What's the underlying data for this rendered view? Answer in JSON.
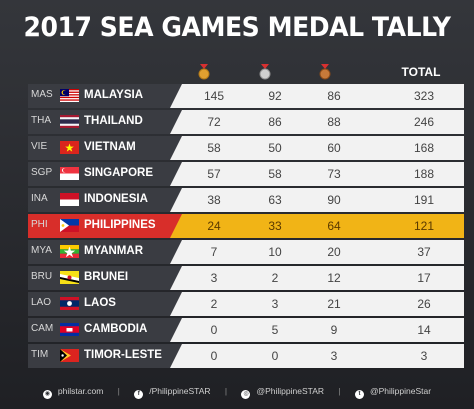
{
  "title": "2017 SEA GAMES MEDAL TALLY",
  "header": {
    "gold": "gold-medal",
    "silver": "silver-medal",
    "bronze": "bronze-medal",
    "total_label": "TOTAL"
  },
  "rows": [
    {
      "code": "MAS",
      "country": "MALAYSIA",
      "gold": "145",
      "silver": "92",
      "bronze": "86",
      "total": "323"
    },
    {
      "code": "THA",
      "country": "THAILAND",
      "gold": "72",
      "silver": "86",
      "bronze": "88",
      "total": "246"
    },
    {
      "code": "VIE",
      "country": "VIETNAM",
      "gold": "58",
      "silver": "50",
      "bronze": "60",
      "total": "168"
    },
    {
      "code": "SGP",
      "country": "SINGAPORE",
      "gold": "57",
      "silver": "58",
      "bronze": "73",
      "total": "188"
    },
    {
      "code": "INA",
      "country": "INDONESIA",
      "gold": "38",
      "silver": "63",
      "bronze": "90",
      "total": "191"
    },
    {
      "code": "PHI",
      "country": "PHILIPPINES",
      "gold": "24",
      "silver": "33",
      "bronze": "64",
      "total": "121"
    },
    {
      "code": "MYA",
      "country": "MYANMAR",
      "gold": "7",
      "silver": "10",
      "bronze": "20",
      "total": "37"
    },
    {
      "code": "BRU",
      "country": "BRUNEI",
      "gold": "3",
      "silver": "2",
      "bronze": "12",
      "total": "17"
    },
    {
      "code": "LAO",
      "country": "LAOS",
      "gold": "2",
      "silver": "3",
      "bronze": "21",
      "total": "26"
    },
    {
      "code": "CAM",
      "country": "CAMBODIA",
      "gold": "0",
      "silver": "5",
      "bronze": "9",
      "total": "14"
    },
    {
      "code": "TIM",
      "country": "TIMOR-LESTE",
      "gold": "0",
      "silver": "0",
      "bronze": "3",
      "total": "3"
    }
  ],
  "colors": {
    "highlight_row": "#f1b416",
    "highlight_label": "#d82e2a",
    "gold": "#e0a030",
    "silver": "#c8c8c8",
    "bronze": "#c87a3a"
  },
  "footer": {
    "site": "philstar.com",
    "facebook": "/PhilippineSTAR",
    "instagram": "@PhilippineSTAR",
    "twitter": "@PhilippineStar"
  }
}
